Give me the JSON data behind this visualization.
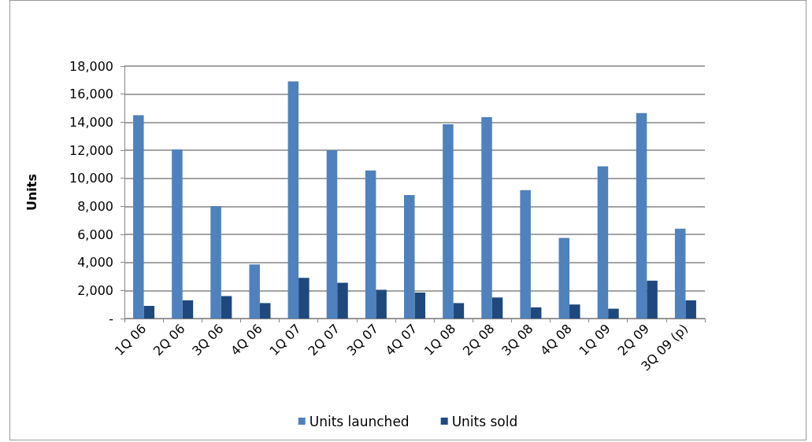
{
  "chart_data": {
    "type": "bar",
    "ylabel": "Units",
    "categories": [
      "1Q 06",
      "2Q 06",
      "3Q 06",
      "4Q 06",
      "1Q 07",
      "2Q 07",
      "3Q 07",
      "4Q 07",
      "1Q 08",
      "2Q 08",
      "3Q 08",
      "4Q 08",
      "1Q 09",
      "2Q 09",
      "3Q 09 (p)"
    ],
    "series": [
      {
        "name": "Units launched",
        "color": "#4f81bd",
        "values": [
          14500,
          12050,
          8000,
          3850,
          16900,
          12000,
          10550,
          8800,
          13850,
          14350,
          9150,
          5750,
          10850,
          14650,
          6400
        ]
      },
      {
        "name": "Units sold",
        "color": "#1f497d",
        "values": [
          900,
          1300,
          1600,
          1100,
          2900,
          2550,
          2050,
          1850,
          1100,
          1500,
          800,
          1000,
          700,
          2700,
          1300
        ]
      }
    ],
    "ylim": [
      0,
      18000
    ],
    "yticks": [
      {
        "value": 0,
        "label": "-"
      },
      {
        "value": 2000,
        "label": "2,000"
      },
      {
        "value": 4000,
        "label": "4,000"
      },
      {
        "value": 6000,
        "label": "6,000"
      },
      {
        "value": 8000,
        "label": "8,000"
      },
      {
        "value": 10000,
        "label": "10,000"
      },
      {
        "value": 12000,
        "label": "12,000"
      },
      {
        "value": 14000,
        "label": "14,000"
      },
      {
        "value": 16000,
        "label": "16,000"
      },
      {
        "value": 18000,
        "label": "18,000"
      }
    ],
    "grid": "y",
    "legend": "bottom"
  }
}
